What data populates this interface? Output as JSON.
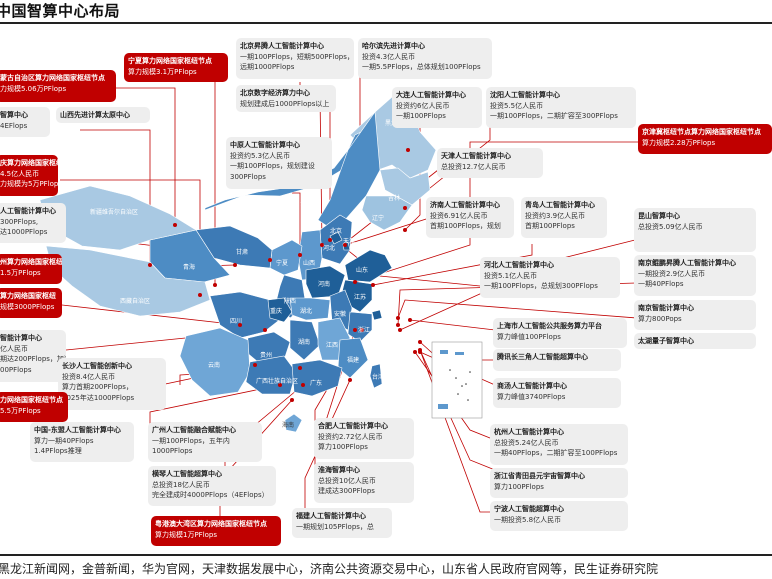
{
  "title": "中国智算中心布局",
  "source": "黑龙江新闻网，金普新闻，华为官网，天津数据发展中心，济南公共资源交易中心，山东省人民政府官网等，民生证券研究院",
  "province_labels": [
    "黑龙江",
    "吉林",
    "辽宁",
    "内蒙古自治区",
    "北京",
    "天津",
    "河北",
    "山西",
    "山东",
    "宁夏",
    "甘肃",
    "青海",
    "新疆维吾尔自治区",
    "西藏自治区",
    "陕西",
    "河南",
    "江苏",
    "安徽",
    "上海",
    "四川",
    "重庆",
    "湖北",
    "浙江",
    "湖南",
    "江西",
    "贵州",
    "云南",
    "福建",
    "广西壮族自治区",
    "广东",
    "海南",
    "台湾"
  ],
  "boxes": [
    {
      "title": "蒙古自治区算力网络国家枢纽节点",
      "lines": [
        "力规模5.06万PFlops"
      ],
      "red": true
    },
    {
      "title": "宁夏算力网络国家枢纽节点",
      "lines": [
        "算力规模3.1万PFlops"
      ],
      "red": true
    },
    {
      "title": "北京昇腾人工智能计算中心",
      "lines": [
        "一期100PFlops，短期500PFlops，",
        "远期1000PFlops"
      ],
      "red": false
    },
    {
      "title": "哈尔滨先进计算中心",
      "lines": [
        "投资4.3亿人民币",
        "一期5.5PFlops，总体规划100PFlops"
      ],
      "red": false
    },
    {
      "title": "北京数字经济算力中心",
      "lines": [
        "规划建成后1000PFlops以上"
      ],
      "red": false
    },
    {
      "title": "大连人工智能计算中心",
      "lines": [
        "投资约6亿人民币",
        "一期100PFlops"
      ],
      "red": false
    },
    {
      "title": "沈阳人工智能计算中心",
      "lines": [
        "投资5.5亿人民币",
        "一期100PFlops，二期扩容至300PFlops"
      ],
      "red": false
    },
    {
      "title": "智算中心",
      "lines": [
        "4EFlops"
      ],
      "red": false
    },
    {
      "title": "山西先进计算太原中心",
      "lines": [],
      "red": false
    },
    {
      "title": "京津冀枢纽节点算力网络国家枢纽节点",
      "lines": [
        "算力规模2.28万PFlops"
      ],
      "red": true
    },
    {
      "title": "中原人工智能计算中心",
      "lines": [
        "投资约5.3亿人民币",
        "一期100PFlops，规划建设",
        "300PFlops"
      ],
      "red": false
    },
    {
      "title": "天津人工智能计算中心",
      "lines": [
        "总投资12.7亿人民币"
      ],
      "red": false
    },
    {
      "title": "庆算力网络国家枢纽节点",
      "lines": [
        "4.5亿人民币",
        "力规模为5万PFlops"
      ],
      "red": true
    },
    {
      "title": "济南人工智能计算中心",
      "lines": [
        "投资6.91亿人民币",
        "首期100PFlops，规划"
      ],
      "red": false
    },
    {
      "title": "青岛人工智能计算中心",
      "lines": [
        "投资约3.9亿人民币",
        "首期100PFlops"
      ],
      "red": false
    },
    {
      "title": "昆山智算中心",
      "lines": [
        "总投资5.09亿人民币"
      ],
      "red": false
    },
    {
      "title": "人工智能计算中心",
      "lines": [
        "300PFlops,",
        "达1000PFlops"
      ],
      "red": false
    },
    {
      "title": "河北人工智能计算中心",
      "lines": [
        "投资5.1亿人民币",
        "一期100PFlops，总规划300PFlops"
      ],
      "red": false
    },
    {
      "title": "南京鲲鹏昇腾人工智能计算中心",
      "lines": [
        "一期投资2.9亿人民币",
        "一期40PFlops"
      ],
      "red": false
    },
    {
      "title": "州算力网络国家枢纽节点",
      "lines": [
        "1.5万PFlops"
      ],
      "red": true
    },
    {
      "title": "算力网络国家枢纽",
      "lines": [
        "规模3000PFlops"
      ],
      "red": true
    },
    {
      "title": "南京智能计算中心",
      "lines": [
        "算力800Pops"
      ],
      "red": false
    },
    {
      "title": "上海市人工智能公共服务算力平台",
      "lines": [
        "算力峰值100PFlops"
      ],
      "red": false
    },
    {
      "title": "太湖量子智算中心",
      "lines": [],
      "red": false
    },
    {
      "title": "智能计算中心",
      "lines": [
        "亿人民币",
        "期达200PFlops，加速",
        "00PFlops"
      ],
      "red": false
    },
    {
      "title": "腾讯长三角人工智能超算中心",
      "lines": [],
      "red": false
    },
    {
      "title": "长沙人工智能创新中心",
      "lines": [
        "投资8.4亿人民币",
        "算力首期200PFlops，",
        "2025年达1000PFlops"
      ],
      "red": false
    },
    {
      "title": "商汤人工智能计算中心",
      "lines": [
        "算力峰值3740PFlops"
      ],
      "red": false
    },
    {
      "title": "力网络国家枢纽节点",
      "lines": [
        "5.5万PFlops"
      ],
      "red": true
    },
    {
      "title": "中国-东盟人工智能计算中心",
      "lines": [
        "算力一期40PFlops",
        "1.4PFlops推理"
      ],
      "red": false
    },
    {
      "title": "广州人工智能融合赋能中心",
      "lines": [
        "一期100PFlops，五年内",
        "1000PFlops"
      ],
      "red": false
    },
    {
      "title": "合肥人工智能计算中心",
      "lines": [
        "投资约2.72亿人民币",
        "算力100PFlops"
      ],
      "red": false
    },
    {
      "title": "杭州人工智能计算中心",
      "lines": [
        "总投资5.24亿人民币",
        "一期40PFlops，二期扩容至100PFlops"
      ],
      "red": false
    },
    {
      "title": "横琴人工智能超算中心",
      "lines": [
        "总投资18亿人民币",
        "完全建成时4000PFlops（4EFlops）"
      ],
      "red": false
    },
    {
      "title": "淮海智算中心",
      "lines": [
        "总投资10亿人民币",
        "建成达300PFlops"
      ],
      "red": false
    },
    {
      "title": "浙江省青田县元宇宙智算中心",
      "lines": [
        "算力100PFlops"
      ],
      "red": false
    },
    {
      "title": "宁波人工智能超算中心",
      "lines": [
        "一期投资5.8亿人民币"
      ],
      "red": false
    },
    {
      "title": "福建人工智能计算中心",
      "lines": [
        "一期规划105PFlops，总"
      ],
      "red": false
    },
    {
      "title": "粤港澳大湾区算力网络国家枢纽节点",
      "lines": [
        "算力规模1万PFlops"
      ],
      "red": true
    }
  ]
}
